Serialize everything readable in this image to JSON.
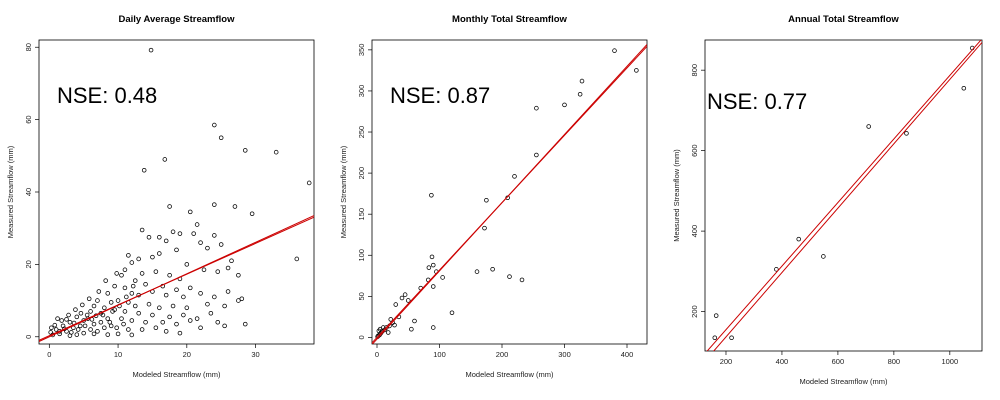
{
  "chart_data": [
    {
      "type": "scatter",
      "title": "Daily Average Streamflow",
      "xlabel": "Modeled Streamflow (mm)",
      "ylabel": "Measured Streamflow (mm)",
      "xlim": [
        -1.5,
        38.5
      ],
      "ylim": [
        -2,
        82
      ],
      "xticks": [
        0,
        10,
        20,
        30
      ],
      "yticks": [
        0,
        20,
        40,
        60,
        80
      ],
      "annotation": "NSE: 0.48",
      "fit_line": {
        "color": "#cc0000",
        "intercept": 0.3,
        "slope": 0.85
      },
      "ref_line": {
        "color": "#cc0000",
        "intercept": 0.0,
        "slope": 0.87
      },
      "points": [
        [
          14.8,
          79.2
        ],
        [
          24.0,
          58.5
        ],
        [
          25.0,
          55.0
        ],
        [
          28.5,
          51.5
        ],
        [
          33.0,
          51.0
        ],
        [
          16.8,
          49.0
        ],
        [
          13.8,
          46.0
        ],
        [
          37.8,
          42.5
        ],
        [
          24.0,
          36.5
        ],
        [
          17.5,
          36.0
        ],
        [
          20.5,
          34.5
        ],
        [
          27.0,
          36.0
        ],
        [
          29.5,
          34.0
        ],
        [
          13.5,
          29.5
        ],
        [
          14.5,
          27.5
        ],
        [
          16.0,
          27.5
        ],
        [
          17.0,
          26.5
        ],
        [
          18.0,
          29.0
        ],
        [
          19.0,
          28.5
        ],
        [
          21.0,
          28.5
        ],
        [
          22.0,
          26.0
        ],
        [
          24.0,
          28.0
        ],
        [
          23.0,
          24.5
        ],
        [
          25.0,
          25.5
        ],
        [
          21.5,
          31.0
        ],
        [
          18.5,
          24.0
        ],
        [
          16.0,
          23.0
        ],
        [
          15.0,
          22.0
        ],
        [
          13.0,
          21.5
        ],
        [
          11.5,
          22.5
        ],
        [
          36.0,
          21.5
        ],
        [
          26.5,
          21.0
        ],
        [
          20.0,
          20.0
        ],
        [
          22.5,
          18.5
        ],
        [
          24.5,
          18.0
        ],
        [
          26.0,
          19.0
        ],
        [
          27.5,
          17.0
        ],
        [
          12.0,
          20.5
        ],
        [
          11.0,
          18.5
        ],
        [
          10.5,
          17.0
        ],
        [
          12.5,
          15.5
        ],
        [
          13.5,
          17.5
        ],
        [
          15.5,
          18.0
        ],
        [
          17.5,
          17.0
        ],
        [
          19.0,
          16.0
        ],
        [
          14.0,
          14.5
        ],
        [
          16.5,
          14.0
        ],
        [
          18.5,
          13.0
        ],
        [
          20.5,
          13.5
        ],
        [
          11.0,
          13.5
        ],
        [
          12.0,
          12.0
        ],
        [
          13.0,
          11.5
        ],
        [
          15.0,
          12.5
        ],
        [
          17.0,
          11.5
        ],
        [
          19.5,
          11.0
        ],
        [
          22.0,
          12.0
        ],
        [
          24.0,
          11.0
        ],
        [
          26.0,
          12.5
        ],
        [
          28.0,
          10.5
        ],
        [
          10.0,
          10.0
        ],
        [
          11.5,
          9.5
        ],
        [
          12.5,
          8.5
        ],
        [
          14.5,
          9.0
        ],
        [
          16.0,
          8.0
        ],
        [
          18.0,
          8.5
        ],
        [
          20.0,
          8.0
        ],
        [
          23.0,
          9.0
        ],
        [
          25.5,
          8.5
        ],
        [
          27.5,
          10.0
        ],
        [
          9.5,
          7.5
        ],
        [
          11.0,
          7.0
        ],
        [
          13.0,
          6.5
        ],
        [
          15.0,
          6.0
        ],
        [
          17.5,
          5.5
        ],
        [
          19.5,
          6.0
        ],
        [
          21.5,
          5.0
        ],
        [
          23.5,
          6.5
        ],
        [
          10.5,
          5.0
        ],
        [
          12.0,
          4.5
        ],
        [
          14.0,
          4.0
        ],
        [
          16.5,
          4.0
        ],
        [
          18.5,
          3.5
        ],
        [
          20.5,
          4.5
        ],
        [
          24.5,
          4.0
        ],
        [
          22.0,
          2.5
        ],
        [
          25.5,
          3.0
        ],
        [
          28.5,
          3.5
        ],
        [
          13.5,
          2.0
        ],
        [
          15.5,
          2.5
        ],
        [
          17.0,
          1.5
        ],
        [
          9.0,
          3.0
        ],
        [
          11.5,
          2.0
        ],
        [
          19.0,
          1.0
        ],
        [
          10.0,
          0.8
        ],
        [
          12.0,
          0.5
        ],
        [
          8.5,
          12.0
        ],
        [
          9.0,
          9.5
        ],
        [
          8.0,
          8.0
        ],
        [
          7.5,
          6.5
        ],
        [
          8.5,
          5.0
        ],
        [
          7.0,
          10.0
        ],
        [
          9.5,
          14.0
        ],
        [
          6.5,
          8.5
        ],
        [
          6.0,
          7.0
        ],
        [
          7.5,
          4.0
        ],
        [
          6.5,
          3.5
        ],
        [
          8.0,
          2.5
        ],
        [
          5.5,
          6.0
        ],
        [
          5.0,
          4.5
        ],
        [
          6.0,
          2.0
        ],
        [
          4.5,
          3.0
        ],
        [
          4.0,
          5.5
        ],
        [
          3.5,
          2.5
        ],
        [
          3.0,
          4.0
        ],
        [
          2.5,
          1.5
        ],
        [
          2.0,
          3.0
        ],
        [
          1.5,
          0.8
        ],
        [
          1.0,
          2.0
        ],
        [
          0.5,
          0.5
        ],
        [
          0.2,
          1.2
        ],
        [
          5.0,
          1.0
        ],
        [
          7.0,
          1.5
        ],
        [
          4.0,
          0.6
        ],
        [
          3.0,
          0.3
        ],
        [
          6.5,
          0.8
        ],
        [
          8.5,
          0.6
        ],
        [
          1.8,
          4.5
        ],
        [
          2.8,
          6.0
        ],
        [
          3.8,
          7.5
        ],
        [
          4.8,
          8.8
        ],
        [
          5.8,
          10.5
        ],
        [
          7.2,
          12.5
        ],
        [
          0.8,
          3.2
        ],
        [
          1.2,
          5.0
        ],
        [
          2.2,
          2.2
        ],
        [
          3.2,
          1.2
        ],
        [
          4.2,
          2.0
        ],
        [
          5.2,
          3.0
        ],
        [
          6.2,
          4.8
        ],
        [
          7.8,
          6.0
        ],
        [
          8.8,
          4.0
        ],
        [
          9.8,
          2.5
        ],
        [
          0.3,
          2.5
        ],
        [
          1.5,
          1.5
        ],
        [
          2.5,
          4.8
        ],
        [
          3.6,
          3.8
        ],
        [
          4.6,
          6.5
        ],
        [
          5.6,
          5.0
        ],
        [
          6.8,
          5.8
        ],
        [
          9.2,
          7.0
        ],
        [
          10.2,
          8.5
        ],
        [
          11.2,
          11.0
        ],
        [
          8.2,
          15.5
        ],
        [
          9.8,
          17.5
        ],
        [
          12.2,
          14.0
        ],
        [
          10.8,
          3.5
        ]
      ]
    },
    {
      "type": "scatter",
      "title": "Monthly Total Streamflow",
      "xlabel": "Modeled Streamflow (mm)",
      "ylabel": "Measured Streamflow (mm)",
      "xlim": [
        -8,
        432
      ],
      "ylim": [
        -8,
        362
      ],
      "xticks": [
        0,
        100,
        200,
        300,
        400
      ],
      "yticks": [
        0,
        50,
        100,
        150,
        200,
        250,
        300,
        350
      ],
      "annotation": "NSE: 0.87",
      "fit_line": {
        "color": "#cc0000",
        "intercept": -2,
        "slope": 0.83
      },
      "ref_line": {
        "color": "#cc0000",
        "intercept": 0,
        "slope": 0.82
      },
      "points": [
        [
          380,
          349
        ],
        [
          415,
          325
        ],
        [
          328,
          312
        ],
        [
          325,
          296
        ],
        [
          300,
          283
        ],
        [
          255,
          279
        ],
        [
          255,
          222
        ],
        [
          220,
          196
        ],
        [
          209,
          170
        ],
        [
          175,
          167
        ],
        [
          87,
          173
        ],
        [
          172,
          133
        ],
        [
          88,
          98
        ],
        [
          90,
          88
        ],
        [
          83,
          85
        ],
        [
          95,
          80
        ],
        [
          105,
          73
        ],
        [
          160,
          80
        ],
        [
          185,
          83
        ],
        [
          212,
          74
        ],
        [
          232,
          70
        ],
        [
          82,
          70
        ],
        [
          90,
          62
        ],
        [
          70,
          60
        ],
        [
          45,
          52
        ],
        [
          50,
          45
        ],
        [
          40,
          48
        ],
        [
          30,
          40
        ],
        [
          35,
          25
        ],
        [
          120,
          30
        ],
        [
          90,
          12
        ],
        [
          60,
          20
        ],
        [
          55,
          10
        ],
        [
          25,
          18
        ],
        [
          20,
          14
        ],
        [
          15,
          12
        ],
        [
          12,
          9
        ],
        [
          10,
          12
        ],
        [
          8,
          7
        ],
        [
          6,
          5
        ],
        [
          4,
          3
        ],
        [
          3,
          8
        ],
        [
          2,
          2
        ],
        [
          1,
          1
        ],
        [
          5,
          10
        ],
        [
          18,
          6
        ],
        [
          22,
          22
        ],
        [
          28,
          15
        ]
      ]
    },
    {
      "type": "scatter",
      "title": "Annual Total Streamflow",
      "xlabel": "Modeled Streamflow (mm)",
      "ylabel": "Measured Streamflow (mm)",
      "xlim": [
        125,
        1115
      ],
      "ylim": [
        102,
        875
      ],
      "xticks": [
        200,
        400,
        600,
        800,
        1000
      ],
      "yticks": [
        200,
        400,
        600,
        800
      ],
      "annotation": "NSE: 0.77",
      "fit_line": {
        "color": "#cc0000",
        "intercept": -3,
        "slope": 0.79
      },
      "ref_line": {
        "color": "#cc0000",
        "intercept": -23,
        "slope": 0.8
      },
      "points": [
        [
          1080,
          855
        ],
        [
          1050,
          755
        ],
        [
          845,
          643
        ],
        [
          710,
          660
        ],
        [
          548,
          337
        ],
        [
          460,
          380
        ],
        [
          380,
          305
        ],
        [
          220,
          135
        ],
        [
          165,
          190
        ],
        [
          160,
          135
        ]
      ]
    }
  ]
}
